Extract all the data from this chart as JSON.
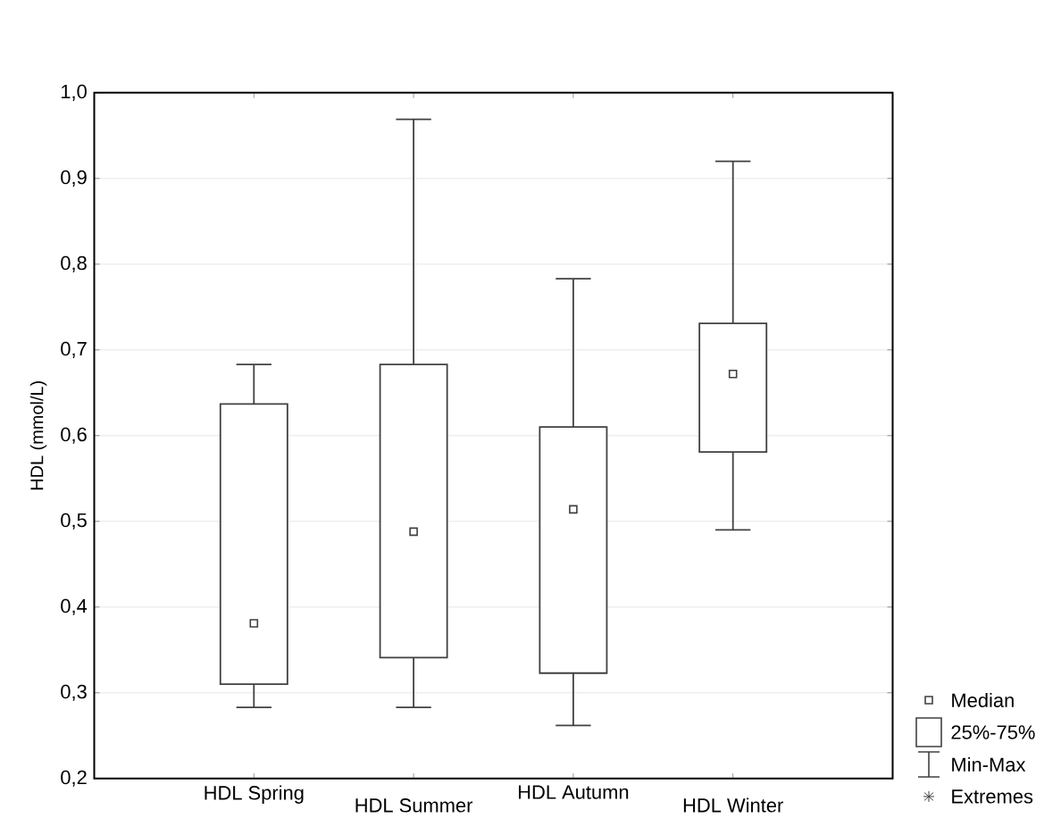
{
  "chart_data": {
    "type": "box",
    "ylabel": "HDL (mmol/L)",
    "categories": [
      "HDL Spring",
      "HDL Summer",
      "HDL Autumn",
      "HDL Winter"
    ],
    "boxes": [
      {
        "low": 0.283,
        "q1": 0.31,
        "median": 0.381,
        "q3": 0.637,
        "high": 0.683
      },
      {
        "low": 0.283,
        "q1": 0.341,
        "median": 0.488,
        "q3": 0.683,
        "high": 0.969
      },
      {
        "low": 0.262,
        "q1": 0.323,
        "median": 0.514,
        "q3": 0.61,
        "high": 0.783
      },
      {
        "low": 0.49,
        "q1": 0.581,
        "median": 0.672,
        "q3": 0.731,
        "high": 0.92
      }
    ],
    "color": "#404040",
    "ylim": [
      0.2,
      1.0
    ],
    "yticks": [
      {
        "value": 0.2,
        "label": "0,2"
      },
      {
        "value": 0.3,
        "label": "0,3"
      },
      {
        "value": 0.4,
        "label": "0,4"
      },
      {
        "value": 0.5,
        "label": "0,5"
      },
      {
        "value": 0.6,
        "label": "0,6"
      },
      {
        "value": 0.7,
        "label": "0,7"
      },
      {
        "value": 0.8,
        "label": "0,8"
      },
      {
        "value": 0.9,
        "label": "0,9"
      },
      {
        "value": 1.0,
        "label": "1,0"
      }
    ],
    "grid": "y",
    "marker": "square",
    "annotations": [
      "Median",
      "25%-75%",
      "Min-Max",
      "Extremes"
    ]
  }
}
